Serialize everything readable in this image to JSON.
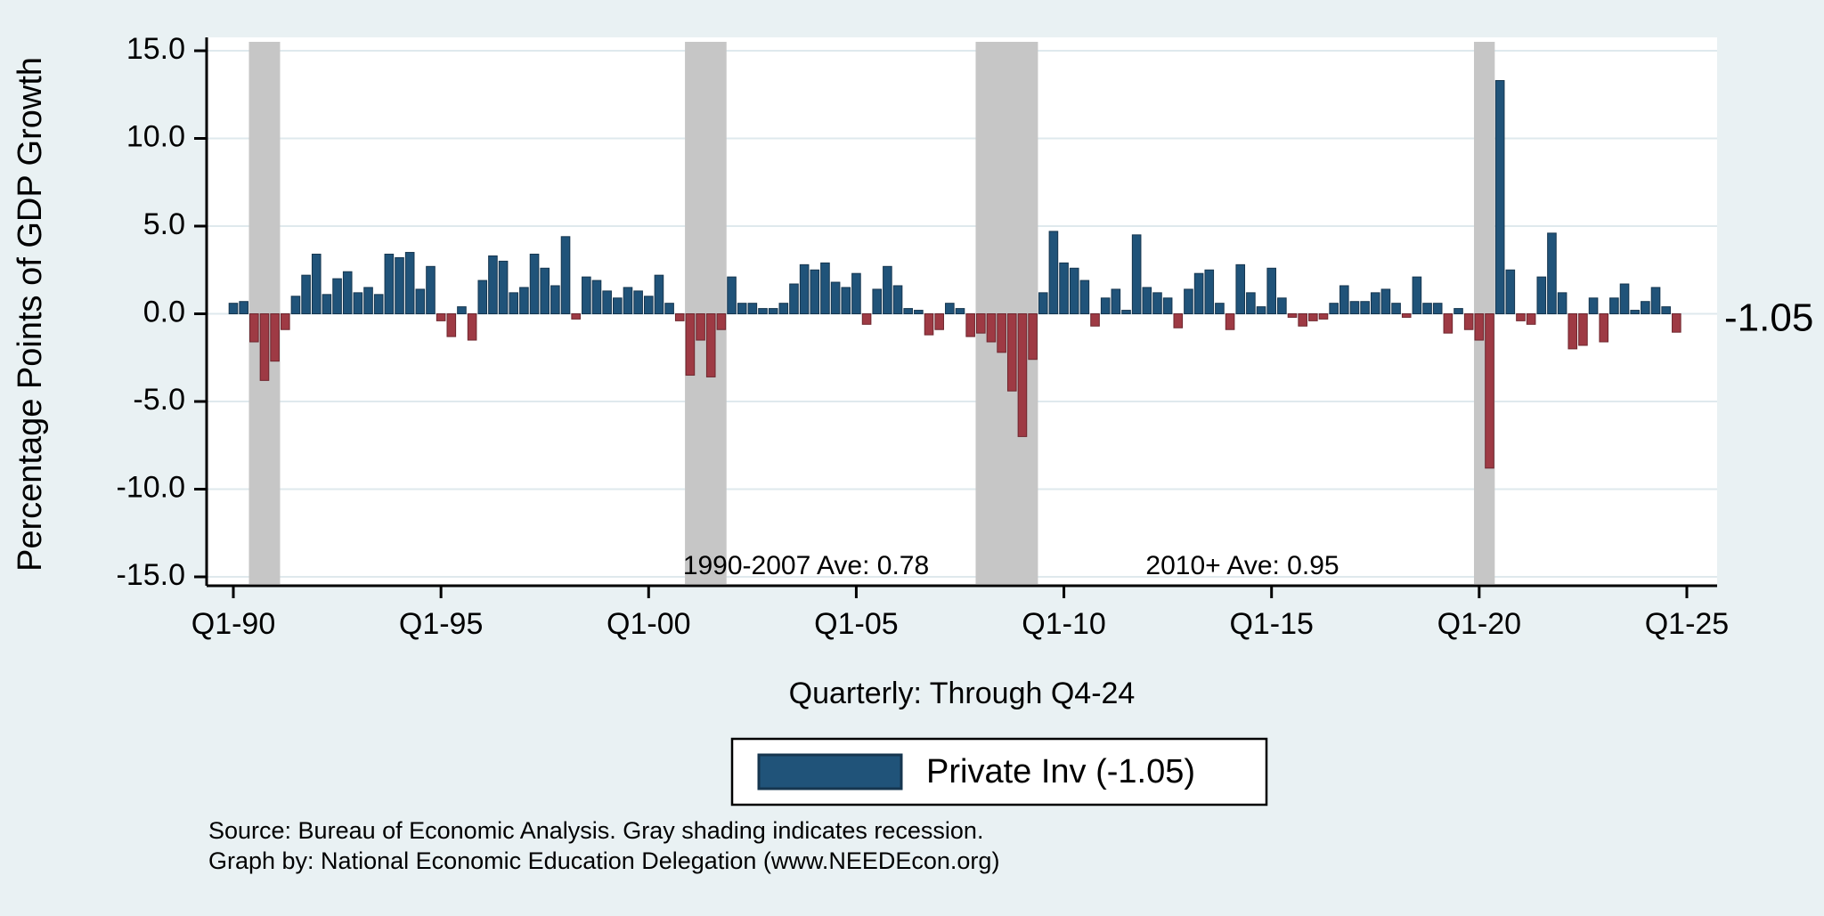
{
  "page": {
    "background_color": "#e9f1f3"
  },
  "chart_data": {
    "type": "bar",
    "title": "",
    "ylabel": "Percentage Points of GDP Growth",
    "xlabel": "Quarterly: Through Q4-24",
    "ylim": [
      -15,
      15
    ],
    "grid": true,
    "y_ticks": [
      "15.0",
      "10.0",
      "5.0",
      "0.0",
      "-5.0",
      "-10.0",
      "-15.0"
    ],
    "y_tick_values": [
      15,
      10,
      5,
      0,
      -5,
      -10,
      -15
    ],
    "x_ticks": [
      "Q1-90",
      "Q1-95",
      "Q1-00",
      "Q1-05",
      "Q1-10",
      "Q1-15",
      "Q1-20",
      "Q1-25"
    ],
    "x_tick_indices": [
      0,
      20,
      40,
      60,
      80,
      100,
      120,
      140
    ],
    "start_quarter": "1990Q1",
    "end_quarter": "2024Q4",
    "series": [
      {
        "name": "Private Inv",
        "values": [
          0.6,
          0.7,
          -1.6,
          -3.8,
          -2.7,
          -0.9,
          1.0,
          2.2,
          3.4,
          1.1,
          2.0,
          2.4,
          1.2,
          1.5,
          1.1,
          3.4,
          3.2,
          3.5,
          1.4,
          2.7,
          -0.4,
          -1.3,
          0.4,
          -1.5,
          1.9,
          3.3,
          3.0,
          1.2,
          1.5,
          3.4,
          2.6,
          1.6,
          4.4,
          -0.3,
          2.1,
          1.9,
          1.3,
          0.9,
          1.5,
          1.3,
          1.0,
          2.2,
          0.6,
          -0.4,
          -3.5,
          -1.5,
          -3.6,
          -0.9,
          2.1,
          0.6,
          0.6,
          0.3,
          0.3,
          0.6,
          1.7,
          2.8,
          2.5,
          2.9,
          1.8,
          1.5,
          2.3,
          -0.6,
          1.4,
          2.7,
          1.6,
          0.3,
          0.2,
          -1.2,
          -0.9,
          0.6,
          0.3,
          -1.3,
          -1.1,
          -1.6,
          -2.2,
          -4.4,
          -7.0,
          -2.6,
          1.2,
          4.7,
          2.9,
          2.6,
          1.9,
          -0.7,
          0.9,
          1.4,
          0.2,
          4.5,
          1.5,
          1.2,
          0.9,
          -0.8,
          1.4,
          2.3,
          2.5,
          0.6,
          -0.9,
          2.8,
          1.2,
          0.4,
          2.6,
          0.9,
          -0.2,
          -0.7,
          -0.4,
          -0.3,
          0.6,
          1.6,
          0.7,
          0.7,
          1.2,
          1.4,
          0.6,
          -0.2,
          2.1,
          0.6,
          0.6,
          -1.1,
          0.3,
          -0.9,
          -1.5,
          -8.8,
          13.3,
          2.5,
          -0.4,
          -0.6,
          2.1,
          4.6,
          1.2,
          -2.0,
          -1.8,
          0.9,
          -1.6,
          0.9,
          1.7,
          0.2,
          0.7,
          1.5,
          0.4,
          -1.05
        ]
      }
    ],
    "recessions": [
      {
        "label": "1990-91 recession",
        "start_index": 1.5,
        "end_index": 4.5
      },
      {
        "label": "2001 recession",
        "start_index": 43.5,
        "end_index": 47.5
      },
      {
        "label": "2008-09 recession",
        "start_index": 71.5,
        "end_index": 77.5
      },
      {
        "label": "2020 recession",
        "start_index": 119.5,
        "end_index": 121.5
      }
    ],
    "annotations": [
      {
        "text": "1990-2007 Ave: 0.78"
      },
      {
        "text": "2010+ Ave: 0.95"
      }
    ],
    "end_label": "-1.05",
    "legend": {
      "position": "bottom-center",
      "label": "Private Inv (-1.05)"
    },
    "notes": [
      "Source: Bureau of Economic Analysis. Gray shading indicates recession.",
      "Graph by: National Economic Education Delegation (www.NEEDEcon.org)"
    ],
    "colors": {
      "positive_bar": "#205379",
      "positive_bar_edge": "#16364f",
      "negative_bar": "#9e3a44",
      "negative_bar_edge": "#6e262e",
      "recession_shading": "#c6c6c6",
      "gridline": "#dfe9ed",
      "axis": "#000000",
      "plot_background": "#ffffff",
      "page_background": "#e9f1f3"
    }
  }
}
